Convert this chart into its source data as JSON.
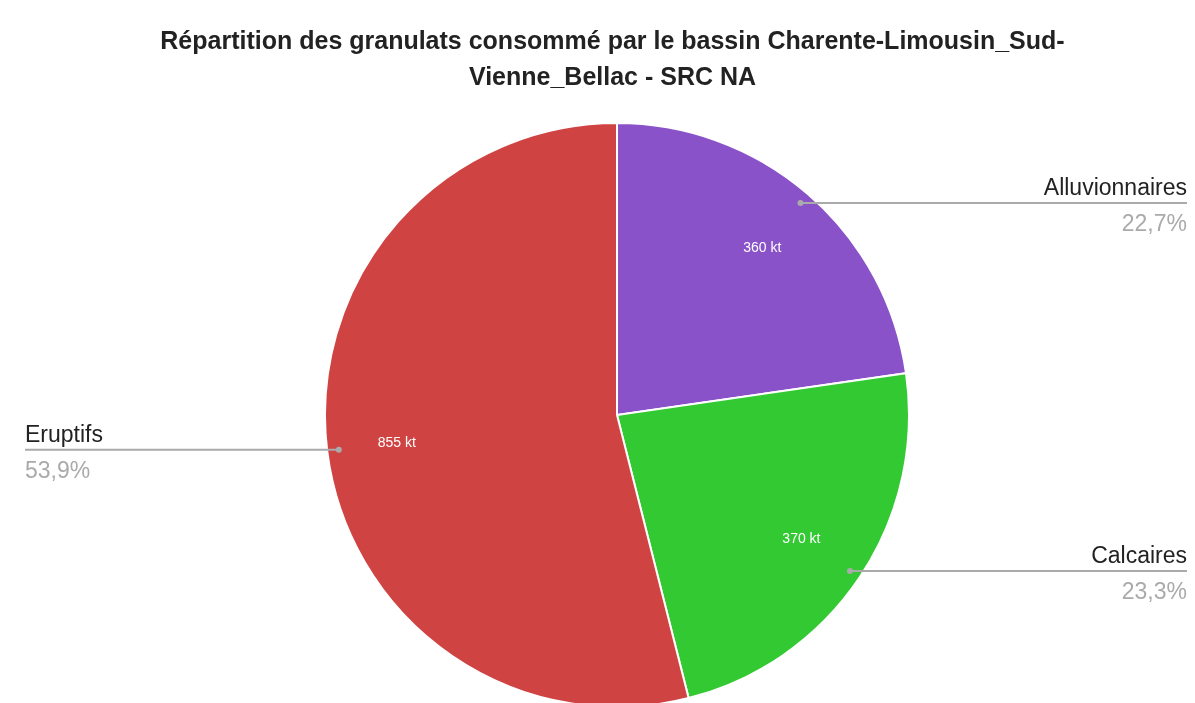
{
  "chart_data": {
    "type": "pie",
    "title": "Répartition des granulats consommé par le bassin Charente-Limousin_Sud-Vienne_Bellac - SRC NA",
    "categories": [
      "Alluvionnaires",
      "Calcaires",
      "Eruptifs"
    ],
    "values": [
      360,
      370,
      855
    ],
    "colors": [
      "#8a52c8",
      "#33c933",
      "#cf4342"
    ],
    "value_labels": [
      "360 kt",
      "370 kt",
      "855 kt"
    ],
    "annotations": [
      "22,7%",
      "23,3%",
      "53,9%"
    ]
  }
}
